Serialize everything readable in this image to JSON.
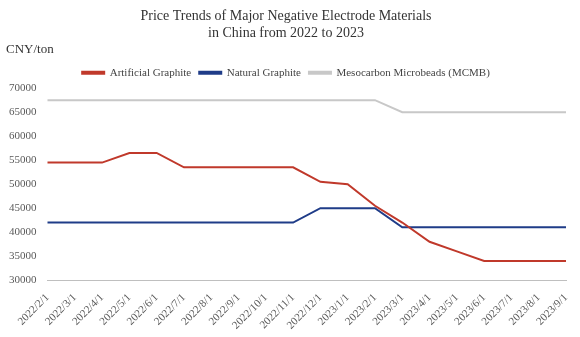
{
  "chart_data": {
    "type": "line",
    "title": "Price Trends of Major Negative Electrode Materials in China from 2022 to 2023",
    "ylabel": "CNY/ton",
    "categories": [
      "2022/2/1",
      "2022/3/1",
      "2022/4/1",
      "2022/5/1",
      "2022/6/1",
      "2022/7/1",
      "2022/8/1",
      "2022/9/1",
      "2022/10/1",
      "2022/11/1",
      "2022/12/1",
      "2023/1/1",
      "2023/2/1",
      "2023/3/1",
      "2023/4/1",
      "2023/5/1",
      "2023/6/1",
      "2023/7/1",
      "2023/8/1",
      "2023/9/1"
    ],
    "series": [
      {
        "name": "Artificial Graphite",
        "color": "#c0392b",
        "values": [
          54500,
          54500,
          54500,
          56500,
          56500,
          53500,
          53500,
          53500,
          53500,
          53500,
          50500,
          50000,
          45500,
          42000,
          38000,
          36000,
          34000,
          34000,
          34000,
          34000
        ]
      },
      {
        "name": "Natural Graphite",
        "color": "#1f3c88",
        "values": [
          42000,
          42000,
          42000,
          42000,
          42000,
          42000,
          42000,
          42000,
          42000,
          42000,
          45000,
          45000,
          45000,
          41000,
          41000,
          41000,
          41000,
          41000,
          41000,
          41000
        ]
      },
      {
        "name": "Mesocarbon Microbeads (MCMB)",
        "color": "#c8c8c8",
        "values": [
          67500,
          67500,
          67500,
          67500,
          67500,
          67500,
          67500,
          67500,
          67500,
          67500,
          67500,
          67500,
          67500,
          65000,
          65000,
          65000,
          65000,
          65000,
          65000,
          65000
        ]
      }
    ],
    "ylim": [
      30000,
      70000
    ],
    "yticks": [
      30000,
      35000,
      40000,
      45000,
      50000,
      55000,
      60000,
      65000,
      70000
    ],
    "grid": false,
    "legend": "top"
  }
}
